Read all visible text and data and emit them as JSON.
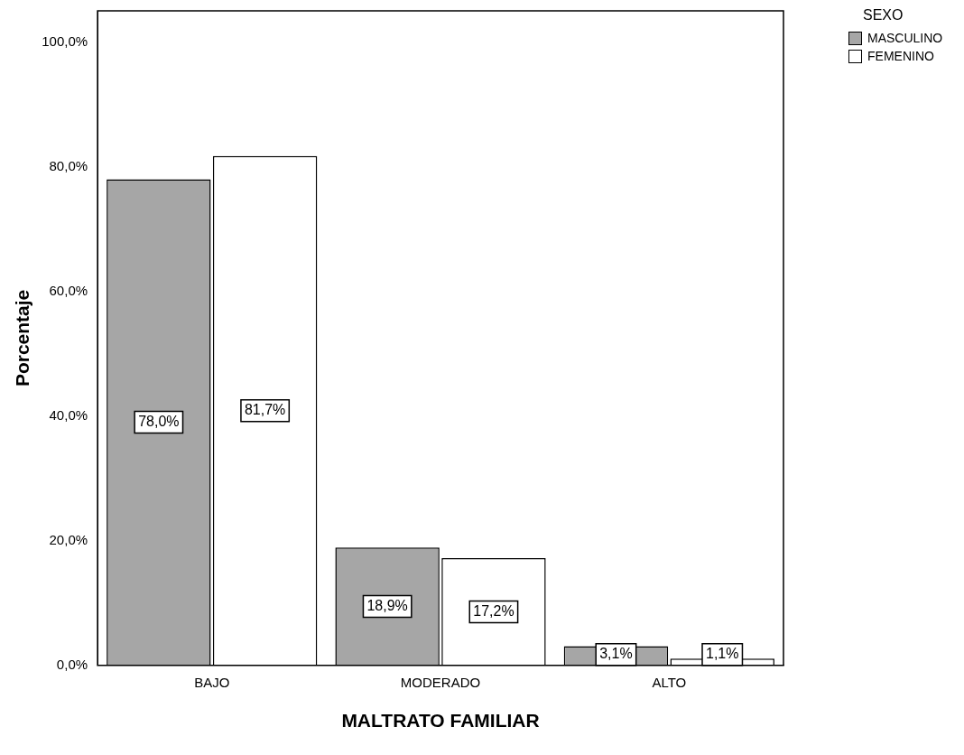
{
  "chart_data": {
    "type": "bar",
    "xlabel": "MALTRATO FAMILIAR",
    "ylabel": "Porcentaje",
    "legend_title": "SEXO",
    "legend": "top right",
    "grid": false,
    "categories": [
      "BAJO",
      "MODERADO",
      "ALTO"
    ],
    "series": [
      {
        "name": "MASCULINO",
        "color": "#a6a6a6",
        "values": [
          78.0,
          18.9,
          3.1
        ],
        "value_labels": [
          "78,0%",
          "18,9%",
          "3,1%"
        ]
      },
      {
        "name": "FEMENINO",
        "color": "#ffffff",
        "values": [
          81.7,
          17.2,
          1.1
        ],
        "value_labels": [
          "81,7%",
          "17,2%",
          "1,1%"
        ]
      }
    ],
    "ylim": [
      0,
      105
    ],
    "yticks": [
      {
        "value": 0,
        "label": "0,0%"
      },
      {
        "value": 20,
        "label": "20,0%"
      },
      {
        "value": 40,
        "label": "40,0%"
      },
      {
        "value": 60,
        "label": "60,0%"
      },
      {
        "value": 80,
        "label": "80,0%"
      },
      {
        "value": 100,
        "label": "100,0%"
      }
    ]
  }
}
